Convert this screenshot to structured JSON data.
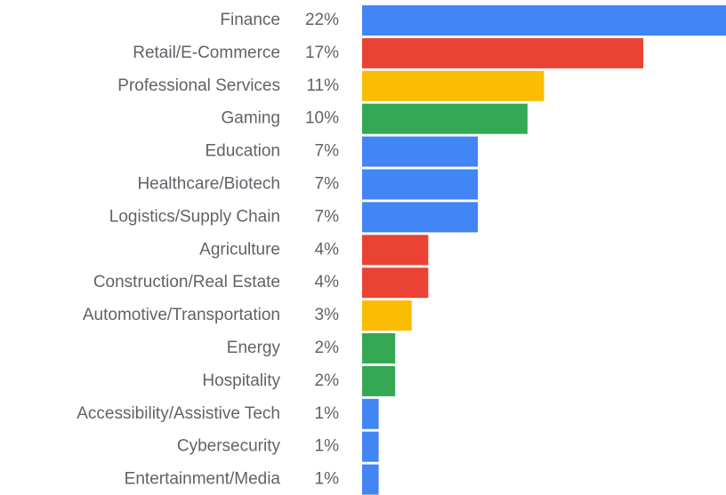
{
  "chart_data": {
    "type": "bar",
    "orientation": "horizontal",
    "categories": [
      "Finance",
      "Retail/E-Commerce",
      "Professional Services",
      "Gaming",
      "Education",
      "Healthcare/Biotech",
      "Logistics/Supply Chain",
      "Agriculture",
      "Construction/Real Estate",
      "Automotive/Transportation",
      "Energy",
      "Hospitality",
      "Accessibility/Assistive Tech",
      "Cybersecurity",
      "Entertainment/Media"
    ],
    "values": [
      22,
      17,
      11,
      10,
      7,
      7,
      7,
      4,
      4,
      3,
      2,
      2,
      1,
      1,
      1
    ],
    "value_labels": [
      "22%",
      "17%",
      "11%",
      "10%",
      "7%",
      "7%",
      "7%",
      "4%",
      "4%",
      "3%",
      "2%",
      "2%",
      "1%",
      "1%",
      "1%"
    ],
    "colors": [
      "#4285f4",
      "#ea4335",
      "#fbbc04",
      "#34a853",
      "#4285f4",
      "#4285f4",
      "#4285f4",
      "#ea4335",
      "#ea4335",
      "#fbbc04",
      "#34a853",
      "#34a853",
      "#4285f4",
      "#4285f4",
      "#4285f4"
    ]
  }
}
